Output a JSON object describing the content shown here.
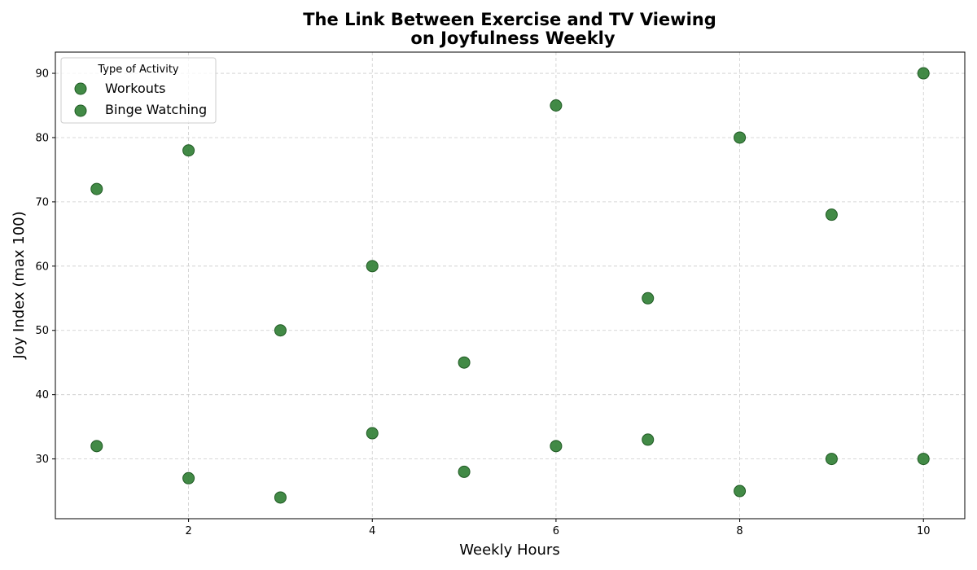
{
  "chart_data": {
    "type": "scatter",
    "title": [
      "The Link Between Exercise and TV Viewing",
      "on Joyfulness Weekly"
    ],
    "xlabel": "Weekly Hours",
    "ylabel": "Joy Index (max 100)",
    "xlim": [
      0.55,
      10.45
    ],
    "ylim": [
      20.7,
      93.3
    ],
    "xticks": [
      2,
      4,
      6,
      8,
      10
    ],
    "yticks": [
      30,
      40,
      50,
      60,
      70,
      80,
      90
    ],
    "grid": true,
    "legend": {
      "title": "Type of Activity",
      "placement": "upper-left"
    },
    "series": [
      {
        "name": "Workouts",
        "color": "#2e7d32",
        "points": [
          [
            1,
            72
          ],
          [
            2,
            78
          ],
          [
            3,
            50
          ],
          [
            4,
            60
          ],
          [
            5,
            45
          ],
          [
            6,
            85
          ],
          [
            7,
            55
          ],
          [
            8,
            80
          ],
          [
            9,
            68
          ],
          [
            10,
            90
          ]
        ]
      },
      {
        "name": "Binge Watching",
        "color": "#2e7d32",
        "points": [
          [
            1,
            32
          ],
          [
            2,
            27
          ],
          [
            3,
            24
          ],
          [
            4,
            34
          ],
          [
            5,
            28
          ],
          [
            6,
            32
          ],
          [
            7,
            33
          ],
          [
            8,
            25
          ],
          [
            9,
            30
          ],
          [
            10,
            30
          ]
        ]
      }
    ]
  }
}
